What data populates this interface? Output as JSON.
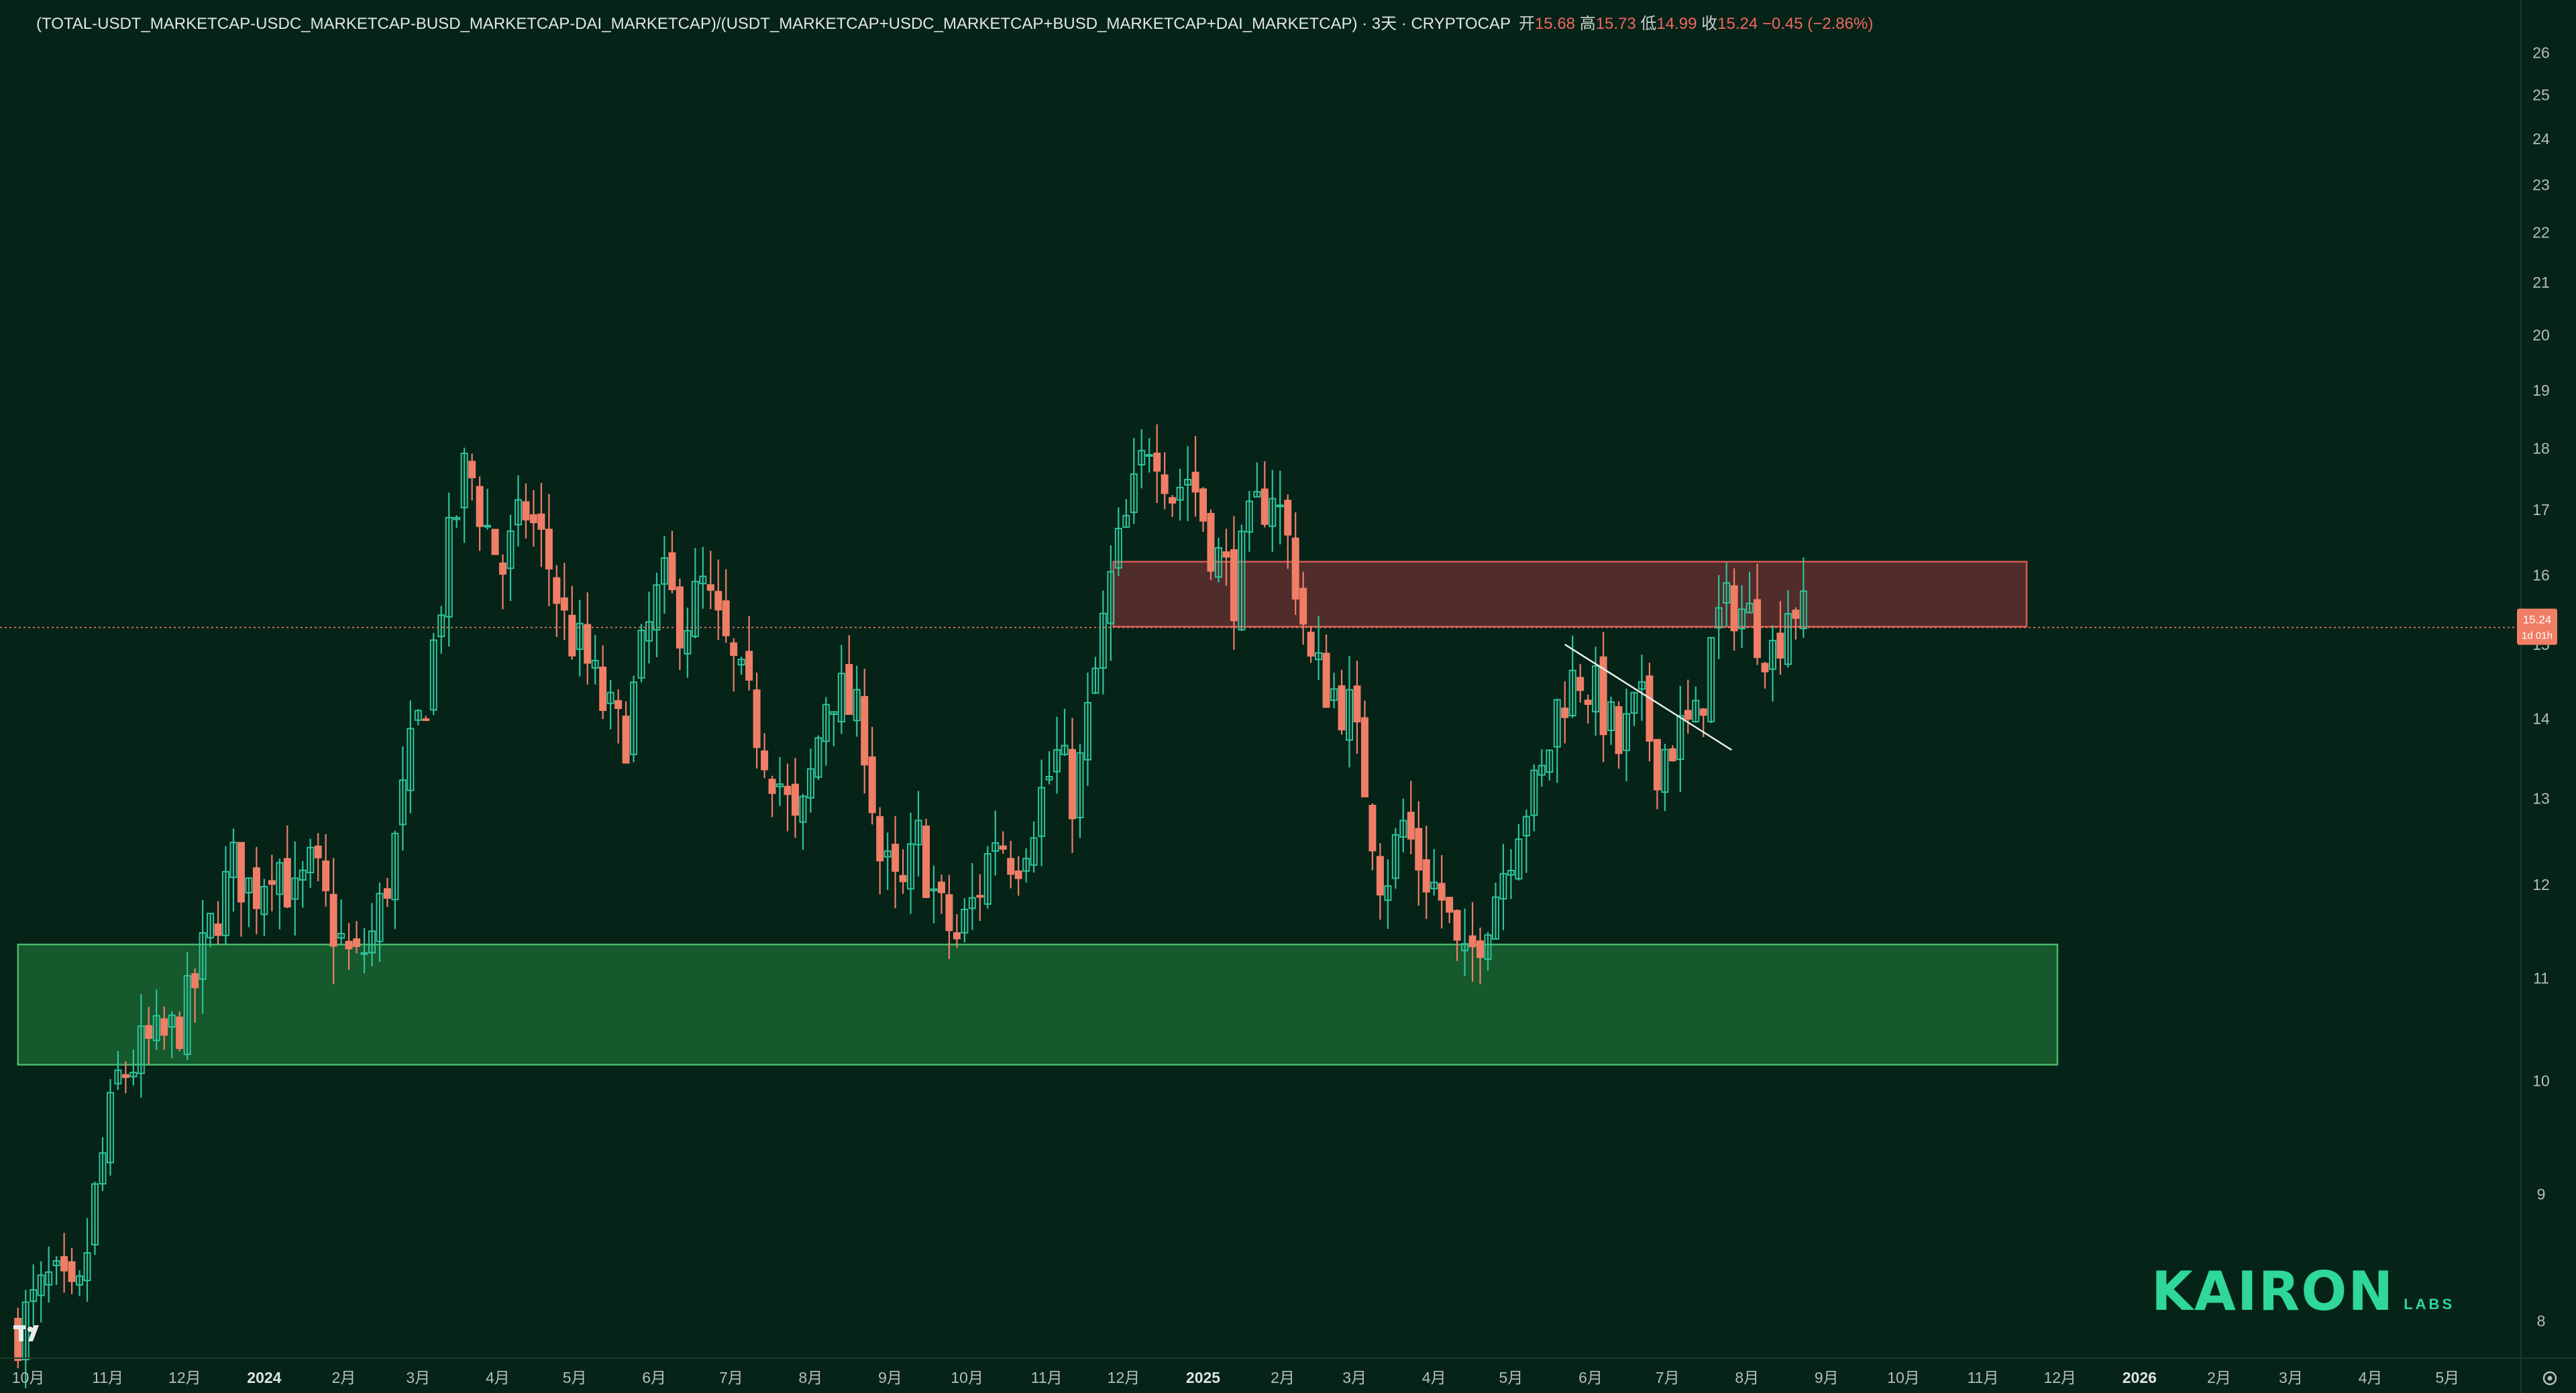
{
  "header": {
    "title": "(TOTAL-USDT_MARKETCAP-USDC_MARKETCAP-BUSD_MARKETCAP-DAI_MARKETCAP)/(USDT_MARKETCAP+USDC_MARKETCAP+BUSD_MARKETCAP+DAI_MARKETCAP) · 3天 · CRYPTOCAP",
    "open_label": "开",
    "open_value": "15.68",
    "high_label": "高",
    "high_value": "15.73",
    "low_label": "低",
    "low_value": "14.99",
    "close_label": "收",
    "close_value": "15.24",
    "change": "−0.45 (−2.86%)"
  },
  "logo": {
    "brand": "KAIRON",
    "sub": "LABS"
  },
  "price_badge": {
    "value": "15.24",
    "countdown": "1d 01h"
  },
  "colors": {
    "background": "#062318",
    "up": "#2ec39a",
    "down": "#f07e67",
    "support_zone": "#1f7a3a",
    "resistance_zone": "#6a3030",
    "brand": "#2fd79a"
  },
  "chart_data": {
    "type": "candlestick",
    "timeframe": "3天",
    "y_scale": "log",
    "y_ticks": [
      8,
      9,
      10,
      11,
      12,
      13,
      14,
      15,
      16,
      17,
      18,
      19,
      20,
      21,
      22,
      23,
      24,
      25,
      26
    ],
    "x_ticks": [
      "10月",
      "11月",
      "12月",
      "2024",
      "2月",
      "3月",
      "4月",
      "5月",
      "6月",
      "7月",
      "8月",
      "9月",
      "10月",
      "11月",
      "12月",
      "2025",
      "2月",
      "3月",
      "4月",
      "5月",
      "6月",
      "7月",
      "8月",
      "9月",
      "10月",
      "11月",
      "12月",
      "2026",
      "2月",
      "3月",
      "4月",
      "5月"
    ],
    "x_range": [
      "2023-09-20",
      "2026-05-25"
    ],
    "y_range": [
      7.8,
      26.8
    ],
    "last_price": 15.24,
    "zones": [
      {
        "kind": "support",
        "from": "2023-09-27",
        "to": "2025-11-30",
        "low": 10.15,
        "high": 11.35
      },
      {
        "kind": "resistance",
        "from": "2024-11-27",
        "to": "2025-11-18",
        "low": 15.25,
        "high": 16.2
      }
    ],
    "trendline": {
      "from": [
        "2025-05-22",
        15.0
      ],
      "to": [
        "2025-07-26",
        13.6
      ]
    },
    "keypoints": [
      [
        "2023-09-27",
        7.95
      ],
      [
        "2023-10-10",
        8.3
      ],
      [
        "2023-10-20",
        8.05
      ],
      [
        "2023-10-28",
        9.1
      ],
      [
        "2023-11-05",
        10.0
      ],
      [
        "2023-11-15",
        10.3
      ],
      [
        "2023-11-25",
        10.4
      ],
      [
        "2023-12-03",
        10.75
      ],
      [
        "2023-12-12",
        11.6
      ],
      [
        "2023-12-20",
        12.2
      ],
      [
        "2023-12-28",
        11.9
      ],
      [
        "2024-01-05",
        12.4
      ],
      [
        "2024-01-13",
        11.8
      ],
      [
        "2024-01-20",
        12.2
      ],
      [
        "2024-01-27",
        11.6
      ],
      [
        "2024-02-05",
        11.1
      ],
      [
        "2024-02-13",
        11.5
      ],
      [
        "2024-02-20",
        12.3
      ],
      [
        "2024-02-27",
        13.5
      ],
      [
        "2024-03-05",
        14.5
      ],
      [
        "2024-03-12",
        16.2
      ],
      [
        "2024-03-20",
        17.8
      ],
      [
        "2024-03-27",
        16.8
      ],
      [
        "2024-04-03",
        16.1
      ],
      [
        "2024-04-12",
        17.0
      ],
      [
        "2024-04-20",
        16.3
      ],
      [
        "2024-04-27",
        15.3
      ],
      [
        "2024-05-05",
        14.8
      ],
      [
        "2024-05-12",
        14.2
      ],
      [
        "2024-05-20",
        13.7
      ],
      [
        "2024-05-27",
        14.8
      ],
      [
        "2024-06-04",
        15.9
      ],
      [
        "2024-06-12",
        15.3
      ],
      [
        "2024-06-20",
        15.8
      ],
      [
        "2024-06-27",
        15.1
      ],
      [
        "2024-07-05",
        14.4
      ],
      [
        "2024-07-12",
        13.8
      ],
      [
        "2024-07-20",
        13.2
      ],
      [
        "2024-07-27",
        12.5
      ],
      [
        "2024-08-02",
        13.4
      ],
      [
        "2024-08-08",
        14.5
      ],
      [
        "2024-08-15",
        14.2
      ],
      [
        "2024-08-22",
        13.8
      ],
      [
        "2024-08-28",
        12.3
      ],
      [
        "2024-09-05",
        11.8
      ],
      [
        "2024-09-12",
        12.5
      ],
      [
        "2024-09-20",
        11.7
      ],
      [
        "2024-09-27",
        11.4
      ],
      [
        "2024-10-05",
        11.9
      ],
      [
        "2024-10-12",
        12.6
      ],
      [
        "2024-10-20",
        12.3
      ],
      [
        "2024-10-28",
        12.9
      ],
      [
        "2024-11-05",
        13.5
      ],
      [
        "2024-11-12",
        13.0
      ],
      [
        "2024-11-20",
        14.6
      ],
      [
        "2024-11-27",
        16.1
      ],
      [
        "2024-12-05",
        17.2
      ],
      [
        "2024-12-12",
        18.4
      ],
      [
        "2024-12-20",
        17.3
      ],
      [
        "2024-12-27",
        17.6
      ],
      [
        "2025-01-05",
        16.4
      ],
      [
        "2025-01-13",
        15.8
      ],
      [
        "2025-01-20",
        16.8
      ],
      [
        "2025-01-28",
        17.4
      ],
      [
        "2025-02-05",
        16.2
      ],
      [
        "2025-02-12",
        14.7
      ],
      [
        "2025-02-20",
        14.4
      ],
      [
        "2025-02-27",
        14.1
      ],
      [
        "2025-03-05",
        13.2
      ],
      [
        "2025-03-12",
        12.0
      ],
      [
        "2025-03-20",
        12.7
      ],
      [
        "2025-03-27",
        12.2
      ],
      [
        "2025-04-05",
        11.8
      ],
      [
        "2025-04-12",
        11.0
      ],
      [
        "2025-04-20",
        11.6
      ],
      [
        "2025-04-27",
        12.1
      ],
      [
        "2025-05-05",
        12.9
      ],
      [
        "2025-05-12",
        13.1
      ],
      [
        "2025-05-20",
        14.3
      ],
      [
        "2025-05-28",
        14.6
      ],
      [
        "2025-06-05",
        14.2
      ],
      [
        "2025-06-12",
        13.6
      ],
      [
        "2025-06-20",
        14.2
      ],
      [
        "2025-06-27",
        13.5
      ],
      [
        "2025-07-05",
        13.8
      ],
      [
        "2025-07-12",
        13.9
      ],
      [
        "2025-07-20",
        15.3
      ],
      [
        "2025-07-27",
        15.6
      ],
      [
        "2025-08-04",
        15.3
      ],
      [
        "2025-08-11",
        14.9
      ],
      [
        "2025-08-18",
        15.7
      ],
      [
        "2025-08-25",
        15.24
      ]
    ]
  }
}
